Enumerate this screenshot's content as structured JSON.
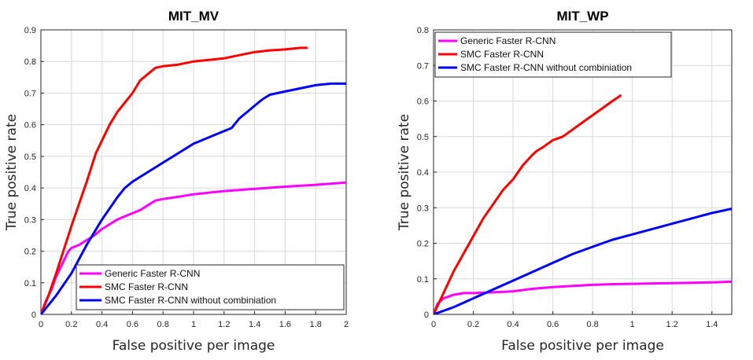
{
  "chart_data": [
    {
      "type": "line",
      "title": "MIT_MV",
      "xlabel": "False positive per image",
      "ylabel": "True positive rate",
      "xlim": [
        0,
        2
      ],
      "ylim": [
        0,
        0.9
      ],
      "xticks": [
        "0",
        "0.2",
        "0.4",
        "0.6",
        "0.8",
        "1",
        "1.2",
        "1.4",
        "1.6",
        "1.8",
        "2"
      ],
      "yticks": [
        "0",
        "0.1",
        "0.2",
        "0.3",
        "0.4",
        "0.5",
        "0.6",
        "0.7",
        "0.8",
        "0.9"
      ],
      "grid": true,
      "legend_position": "bottom-right",
      "series": [
        {
          "name": "Generic Faster R-CNN",
          "color": "#ff00ff",
          "points": [
            [
              0,
              0
            ],
            [
              0.03,
              0.04
            ],
            [
              0.07,
              0.08
            ],
            [
              0.1,
              0.12
            ],
            [
              0.13,
              0.15
            ],
            [
              0.16,
              0.18
            ],
            [
              0.18,
              0.2
            ],
            [
              0.2,
              0.21
            ],
            [
              0.25,
              0.22
            ],
            [
              0.3,
              0.235
            ],
            [
              0.35,
              0.25
            ],
            [
              0.4,
              0.27
            ],
            [
              0.45,
              0.285
            ],
            [
              0.5,
              0.3
            ],
            [
              0.55,
              0.31
            ],
            [
              0.6,
              0.32
            ],
            [
              0.65,
              0.33
            ],
            [
              0.7,
              0.345
            ],
            [
              0.75,
              0.36
            ],
            [
              0.8,
              0.365
            ],
            [
              0.9,
              0.372
            ],
            [
              1.0,
              0.38
            ],
            [
              1.1,
              0.385
            ],
            [
              1.2,
              0.39
            ],
            [
              1.4,
              0.397
            ],
            [
              1.6,
              0.404
            ],
            [
              1.8,
              0.41
            ],
            [
              2.0,
              0.417
            ]
          ]
        },
        {
          "name": "SMC Faster R-CNN",
          "color": "#ff0000",
          "points": [
            [
              0,
              0
            ],
            [
              0.05,
              0.06
            ],
            [
              0.1,
              0.13
            ],
            [
              0.2,
              0.28
            ],
            [
              0.3,
              0.42
            ],
            [
              0.36,
              0.51
            ],
            [
              0.4,
              0.55
            ],
            [
              0.45,
              0.6
            ],
            [
              0.5,
              0.64
            ],
            [
              0.55,
              0.67
            ],
            [
              0.6,
              0.7
            ],
            [
              0.65,
              0.74
            ],
            [
              0.7,
              0.76
            ],
            [
              0.75,
              0.78
            ],
            [
              0.8,
              0.785
            ],
            [
              0.9,
              0.79
            ],
            [
              1.0,
              0.8
            ],
            [
              1.1,
              0.805
            ],
            [
              1.2,
              0.81
            ],
            [
              1.3,
              0.82
            ],
            [
              1.4,
              0.83
            ],
            [
              1.5,
              0.835
            ],
            [
              1.6,
              0.838
            ],
            [
              1.7,
              0.843
            ],
            [
              1.74,
              0.843
            ]
          ]
        },
        {
          "name": "SMC Faster R-CNN without  combiniation",
          "color": "#0000ff",
          "points": [
            [
              0,
              0
            ],
            [
              0.1,
              0.06
            ],
            [
              0.2,
              0.13
            ],
            [
              0.3,
              0.22
            ],
            [
              0.4,
              0.3
            ],
            [
              0.5,
              0.37
            ],
            [
              0.55,
              0.4
            ],
            [
              0.6,
              0.42
            ],
            [
              0.7,
              0.45
            ],
            [
              0.8,
              0.48
            ],
            [
              0.9,
              0.51
            ],
            [
              1.0,
              0.54
            ],
            [
              1.1,
              0.56
            ],
            [
              1.2,
              0.58
            ],
            [
              1.25,
              0.59
            ],
            [
              1.3,
              0.62
            ],
            [
              1.35,
              0.64
            ],
            [
              1.4,
              0.66
            ],
            [
              1.45,
              0.68
            ],
            [
              1.5,
              0.695
            ],
            [
              1.6,
              0.705
            ],
            [
              1.7,
              0.715
            ],
            [
              1.8,
              0.725
            ],
            [
              1.9,
              0.73
            ],
            [
              2.0,
              0.73
            ]
          ]
        }
      ]
    },
    {
      "type": "line",
      "title": "MIT_WP",
      "xlabel": "False positive per image",
      "ylabel": "True positive rate",
      "xlim": [
        0,
        1.5
      ],
      "ylim": [
        0,
        0.8
      ],
      "xticks": [
        "0",
        "0.2",
        "0.4",
        "0.6",
        "0.8",
        "1",
        "1.2",
        "1.4"
      ],
      "yticks": [
        "0",
        "0.1",
        "0.2",
        "0.3",
        "0.4",
        "0.5",
        "0.6",
        "0.7",
        "0.8"
      ],
      "grid": true,
      "legend_position": "top-left",
      "series": [
        {
          "name": "Generic Faster R-CNN",
          "color": "#ff00ff",
          "points": [
            [
              0,
              0
            ],
            [
              0.02,
              0.03
            ],
            [
              0.05,
              0.045
            ],
            [
              0.1,
              0.055
            ],
            [
              0.15,
              0.06
            ],
            [
              0.2,
              0.06
            ],
            [
              0.3,
              0.062
            ],
            [
              0.4,
              0.065
            ],
            [
              0.5,
              0.072
            ],
            [
              0.6,
              0.077
            ],
            [
              0.7,
              0.08
            ],
            [
              0.8,
              0.083
            ],
            [
              0.9,
              0.085
            ],
            [
              1.0,
              0.086
            ],
            [
              1.1,
              0.087
            ],
            [
              1.2,
              0.088
            ],
            [
              1.3,
              0.089
            ],
            [
              1.4,
              0.09
            ],
            [
              1.5,
              0.092
            ]
          ]
        },
        {
          "name": "SMC Faster R-CNN",
          "color": "#ff0000",
          "points": [
            [
              0,
              0
            ],
            [
              0.1,
              0.12
            ],
            [
              0.2,
              0.22
            ],
            [
              0.25,
              0.27
            ],
            [
              0.3,
              0.31
            ],
            [
              0.35,
              0.35
            ],
            [
              0.4,
              0.38
            ],
            [
              0.45,
              0.42
            ],
            [
              0.5,
              0.45
            ],
            [
              0.52,
              0.46
            ],
            [
              0.55,
              0.47
            ],
            [
              0.6,
              0.49
            ],
            [
              0.65,
              0.5
            ],
            [
              0.7,
              0.52
            ],
            [
              0.75,
              0.54
            ],
            [
              0.8,
              0.56
            ],
            [
              0.85,
              0.58
            ],
            [
              0.9,
              0.6
            ],
            [
              0.94,
              0.615
            ]
          ]
        },
        {
          "name": "SMC Faster R-CNN without  combiniation",
          "color": "#0000ff",
          "points": [
            [
              0,
              0
            ],
            [
              0.1,
              0.02
            ],
            [
              0.2,
              0.045
            ],
            [
              0.3,
              0.07
            ],
            [
              0.4,
              0.095
            ],
            [
              0.5,
              0.12
            ],
            [
              0.6,
              0.145
            ],
            [
              0.7,
              0.17
            ],
            [
              0.8,
              0.19
            ],
            [
              0.9,
              0.21
            ],
            [
              1.0,
              0.225
            ],
            [
              1.1,
              0.24
            ],
            [
              1.2,
              0.255
            ],
            [
              1.3,
              0.27
            ],
            [
              1.4,
              0.285
            ],
            [
              1.5,
              0.297
            ]
          ]
        }
      ]
    }
  ]
}
